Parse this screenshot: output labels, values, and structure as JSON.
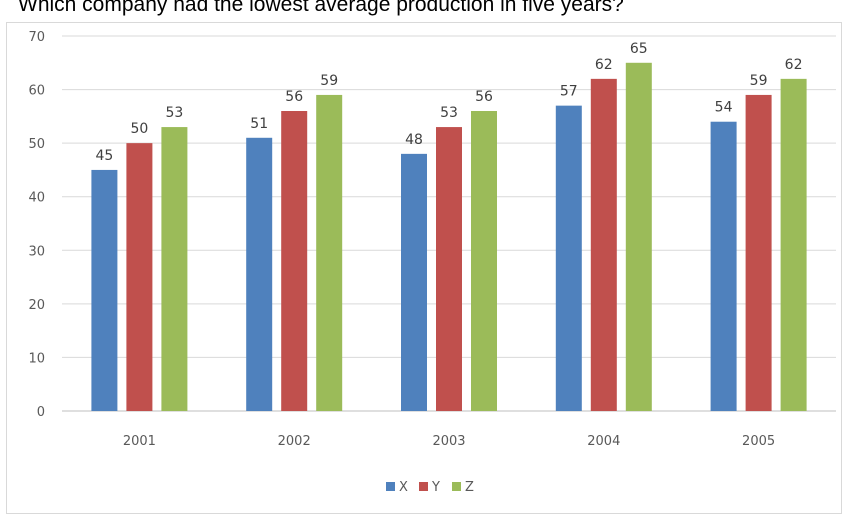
{
  "question": "Which company had the lowest average production in five years?",
  "chart_data": {
    "type": "bar",
    "title": "",
    "xlabel": "",
    "ylabel": "",
    "categories": [
      "2001",
      "2002",
      "2003",
      "2004",
      "2005"
    ],
    "series": [
      {
        "name": "X",
        "color": "#4f81bd",
        "values": [
          45,
          51,
          48,
          57,
          54
        ]
      },
      {
        "name": "Y",
        "color": "#c0504d",
        "values": [
          50,
          56,
          53,
          62,
          59
        ]
      },
      {
        "name": "Z",
        "color": "#9bbb59",
        "values": [
          53,
          59,
          56,
          65,
          62
        ]
      }
    ],
    "ylim": [
      0,
      70
    ],
    "yticks": [
      "0",
      "10",
      "20",
      "30",
      "40",
      "50",
      "60",
      "70"
    ],
    "grid": true,
    "legend": "bottom",
    "data_labels": true
  }
}
